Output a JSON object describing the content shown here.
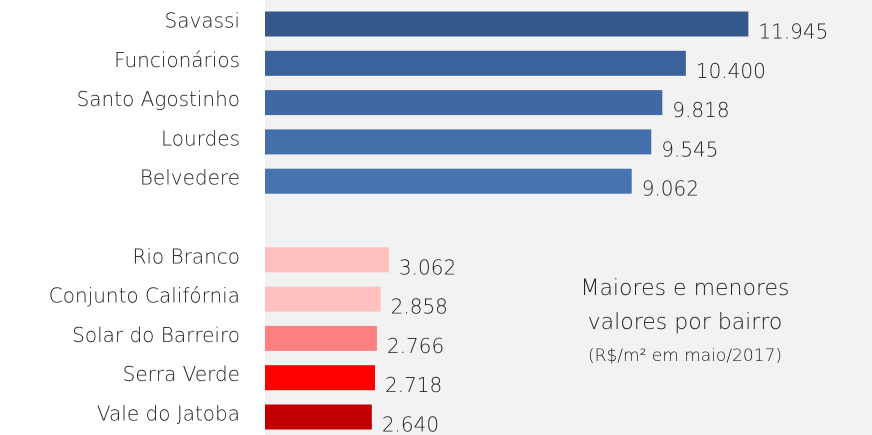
{
  "chart_data": {
    "type": "barh",
    "categories": [
      "Savassi",
      "Funcionários",
      "Santo Agostinho",
      "Lourdes",
      "Belvedere",
      null,
      "Rio Branco",
      "Conjunto Califórnia",
      "Solar do Barreiro",
      "Serra Verde",
      "Vale do Jatoba"
    ],
    "values": [
      11945,
      10400,
      9818,
      9545,
      9062,
      null,
      3062,
      2858,
      2766,
      2718,
      2640
    ],
    "value_labels": [
      "11.945",
      "10.400",
      "9.818",
      "9.545",
      "9.062",
      null,
      "3.062",
      "2.858",
      "2.766",
      "2.718",
      "2.640"
    ],
    "colors": [
      "#34588a",
      "#3b629a",
      "#4069a3",
      "#446fab",
      "#4773b0",
      null,
      "#ffbfbf",
      "#ffc0c0",
      "#ff8080",
      "#ff0000",
      "#c00000"
    ],
    "xlim": [
      0,
      15000
    ],
    "annotations": [
      "Maiores e menores",
      "valores por bairro",
      "(R$/m² em maio/2017)"
    ]
  }
}
